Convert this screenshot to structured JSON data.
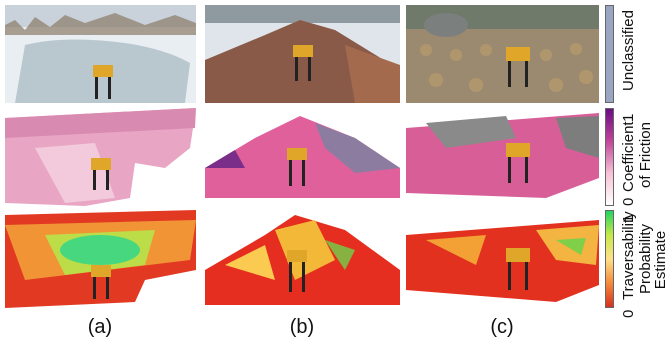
{
  "captions": [
    "(a)",
    "(b)",
    "(c)"
  ],
  "legend": {
    "unclassified": {
      "label": "Unclassified",
      "color": "#9aa5c4"
    },
    "friction": {
      "label_line1": "Coefficient",
      "label_line2": "of Friction",
      "min": "0",
      "max": "1",
      "color_low": "#ffffff",
      "color_high": "#6a0d83"
    },
    "traversability": {
      "label_line1": "Traversability",
      "label_line2": "Probability",
      "label_line3": "Estimate",
      "min": "0",
      "max": "1",
      "color_low": "#d7301f",
      "color_mid": "#fee08b",
      "color_high": "#1fd65f"
    }
  },
  "rows": [
    "photo",
    "friction-map",
    "traversability-map"
  ]
}
